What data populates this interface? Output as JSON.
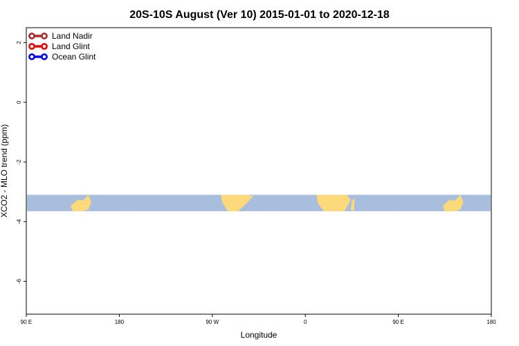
{
  "chart_data": {
    "type": "line",
    "title": "20S-10S August (Ver 10)   2015-01-01 to 2020-12-18",
    "xlabel": "Longitude",
    "ylabel": "XCO2 - MLO trend (ppm)",
    "xlim": [
      90,
      450
    ],
    "ylim": [
      -7.1,
      2.5
    ],
    "x_ticks": [
      {
        "value": 90,
        "label": "90 E"
      },
      {
        "value": 180,
        "label": "180"
      },
      {
        "value": 270,
        "label": "90 W"
      },
      {
        "value": 360,
        "label": "0"
      },
      {
        "value": 450,
        "label": "90 E"
      },
      {
        "value": 540,
        "label": "180"
      }
    ],
    "x_axis_note": "Longitude axis spans 90E eastward through 180 and 0 to 180 (value 540 = 180 on second wrap)",
    "xlim_full": [
      90,
      540
    ],
    "y_ticks": [
      {
        "value": 2,
        "label": "2"
      },
      {
        "value": 0,
        "label": "0"
      },
      {
        "value": -2,
        "label": "-2"
      },
      {
        "value": -4,
        "label": "-4"
      },
      {
        "value": -6,
        "label": "-6"
      }
    ],
    "grid": false,
    "legend_position": "top-left",
    "series": [
      {
        "name": "Land Nadir",
        "color": "#a52a2a",
        "points": []
      },
      {
        "name": "Land Glint",
        "color": "#ee0000",
        "points": []
      },
      {
        "name": "Ocean Glint",
        "color": "#0000ee",
        "points": []
      }
    ],
    "map_strip": {
      "y_top": -3.1,
      "y_bottom": -3.65,
      "ocean_color": "#a8bedc",
      "land_color": "#fcd97b"
    }
  }
}
